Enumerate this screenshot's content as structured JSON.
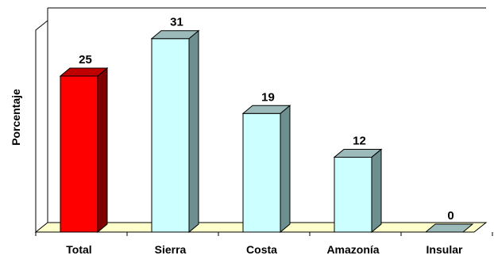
{
  "chart_data": {
    "type": "bar",
    "title": "",
    "xlabel": "",
    "ylabel": "Porcentaje",
    "categories": [
      "Total",
      "Sierra",
      "Costa",
      "Amazonía",
      "Insular"
    ],
    "values": [
      25,
      31,
      19,
      12,
      0
    ],
    "ylim": [
      0,
      35
    ],
    "grid": false,
    "legend": "none",
    "bar_style": "3d",
    "colors": {
      "highlight_front": "#FF0000",
      "highlight_side": "#800000",
      "highlight_top": "#C00000",
      "bar_front": "#CCFFFF",
      "bar_side": "#6E8F8F",
      "bar_top": "#9DBABA",
      "floor": "#FFFFCC",
      "wall_fill": "#FFFFFF",
      "outline": "#000000"
    }
  }
}
